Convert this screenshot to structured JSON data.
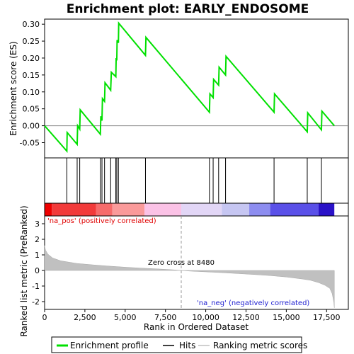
{
  "chart_data": {
    "type": "line",
    "title": "Enrichment plot: EARLY_ENDOSOME",
    "top_panel": {
      "ylabel": "Enrichment score (ES)",
      "ylim": [
        -0.095,
        0.315
      ],
      "yticks": [
        0.3,
        0.25,
        0.2,
        0.15,
        0.1,
        0.05,
        0.0,
        -0.05
      ],
      "ytick_labels": [
        "0.30",
        "0.25",
        "0.20",
        "0.15",
        "0.10",
        "0.05",
        "0.00",
        "-0.05"
      ],
      "series": [
        {
          "name": "Enrichment profile",
          "color": "#00e000",
          "points": [
            [
              0,
              0.0
            ],
            [
              1380,
              -0.075
            ],
            [
              1400,
              -0.02
            ],
            [
              2020,
              -0.055
            ],
            [
              2050,
              0.0
            ],
            [
              2180,
              -0.01
            ],
            [
              2210,
              0.047
            ],
            [
              3460,
              -0.025
            ],
            [
              3490,
              0.028
            ],
            [
              3560,
              0.015
            ],
            [
              3590,
              0.08
            ],
            [
              3720,
              0.072
            ],
            [
              3750,
              0.127
            ],
            [
              4100,
              0.105
            ],
            [
              4140,
              0.158
            ],
            [
              4420,
              0.145
            ],
            [
              4440,
              0.2
            ],
            [
              4480,
              0.193
            ],
            [
              4500,
              0.253
            ],
            [
              4580,
              0.245
            ],
            [
              4600,
              0.303
            ],
            [
              6260,
              0.208
            ],
            [
              6290,
              0.261
            ],
            [
              10230,
              0.04
            ],
            [
              10260,
              0.094
            ],
            [
              10460,
              0.083
            ],
            [
              10490,
              0.137
            ],
            [
              10800,
              0.12
            ],
            [
              10830,
              0.173
            ],
            [
              11230,
              0.15
            ],
            [
              11260,
              0.205
            ],
            [
              14240,
              0.04
            ],
            [
              14270,
              0.094
            ],
            [
              16300,
              -0.018
            ],
            [
              16330,
              0.038
            ],
            [
              17180,
              -0.012
            ],
            [
              17210,
              0.043
            ],
            [
              17980,
              0.0
            ]
          ]
        }
      ]
    },
    "hits": {
      "name": "Hits",
      "positions": [
        1380,
        2020,
        2180,
        3460,
        3560,
        3720,
        4100,
        4420,
        4480,
        4580,
        6260,
        10230,
        10460,
        10800,
        11230,
        14240,
        16300,
        17180
      ]
    },
    "bottom_panel": {
      "ylabel": "Ranked list metric (PreRanked)",
      "xlabel": "Rank in Ordered Dataset",
      "ylim": [
        -2.5,
        3.5
      ],
      "yticks": [
        3,
        2,
        1,
        0,
        -1,
        -2
      ],
      "ytick_labels": [
        "3",
        "2",
        "1",
        "0",
        "-1",
        "-2"
      ],
      "series_name": "Ranking metric scores",
      "profile": [
        [
          0,
          1.6
        ],
        [
          60,
          1.3
        ],
        [
          200,
          1.05
        ],
        [
          500,
          0.8
        ],
        [
          1000,
          0.62
        ],
        [
          2000,
          0.45
        ],
        [
          3000,
          0.36
        ],
        [
          4000,
          0.28
        ],
        [
          5000,
          0.21
        ],
        [
          6000,
          0.15
        ],
        [
          7000,
          0.1
        ],
        [
          8000,
          0.04
        ],
        [
          8480,
          0.0
        ],
        [
          9000,
          -0.04
        ],
        [
          10000,
          -0.09
        ],
        [
          11000,
          -0.14
        ],
        [
          12000,
          -0.2
        ],
        [
          13000,
          -0.26
        ],
        [
          14000,
          -0.33
        ],
        [
          15000,
          -0.42
        ],
        [
          16000,
          -0.55
        ],
        [
          16500,
          -0.63
        ],
        [
          17000,
          -0.78
        ],
        [
          17400,
          -0.95
        ],
        [
          17700,
          -1.15
        ],
        [
          17850,
          -1.5
        ],
        [
          17950,
          -2.05
        ],
        [
          17980,
          -2.4
        ]
      ],
      "annotations": {
        "pos_label": "'na_pos' (positively correlated)",
        "neg_label": "'na_neg' (negatively correlated)",
        "zero_cross": "Zero cross at 8480",
        "zero_cross_rank": 8480
      }
    },
    "xaxis": {
      "range": [
        0,
        18850
      ],
      "ticks": [
        0,
        2500,
        5000,
        7500,
        10000,
        12500,
        15000,
        17500
      ],
      "tick_labels": [
        "0",
        "2,500",
        "5,000",
        "7,500",
        "10,000",
        "12,500",
        "15,000",
        "17,500"
      ],
      "n_genes": 17980
    },
    "heat_bar": {
      "colors": [
        "#ee0000",
        "#f23a3a",
        "#f66b6b",
        "#fa9a9a",
        "#fbc2e6",
        "#e2d6f6",
        "#c6c6f2",
        "#8d8df0",
        "#5a50e8",
        "#2a12c8"
      ],
      "breaks": [
        0,
        450,
        3200,
        4200,
        6200,
        8480,
        11000,
        12700,
        14000,
        17000,
        17980
      ]
    },
    "legend": {
      "position": "bottom",
      "items": [
        {
          "name": "Enrichment profile",
          "color": "#00e000"
        },
        {
          "name": "Hits",
          "color": "#000000"
        },
        {
          "name": "Ranking metric scores",
          "color": "#c0c0c0"
        }
      ]
    }
  }
}
